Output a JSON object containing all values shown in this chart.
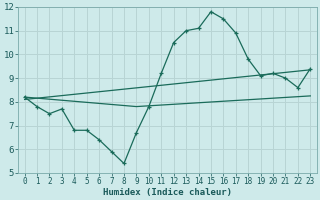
{
  "xlabel": "Humidex (Indice chaleur)",
  "bg_color": "#ceeaea",
  "grid_color": "#b8d4d4",
  "line_color": "#1a6b5a",
  "xlim": [
    -0.5,
    23.5
  ],
  "ylim": [
    5,
    12
  ],
  "yticks": [
    5,
    6,
    7,
    8,
    9,
    10,
    11,
    12
  ],
  "xticks": [
    0,
    1,
    2,
    3,
    4,
    5,
    6,
    7,
    8,
    9,
    10,
    11,
    12,
    13,
    14,
    15,
    16,
    17,
    18,
    19,
    20,
    21,
    22,
    23
  ],
  "series1_x": [
    0,
    1,
    2,
    3,
    4,
    5,
    6,
    7,
    8,
    9,
    10,
    11,
    12,
    13,
    14,
    15,
    16,
    17,
    18,
    19,
    20,
    21,
    22,
    23
  ],
  "series1_y": [
    8.2,
    7.8,
    7.5,
    7.7,
    6.8,
    6.8,
    6.4,
    5.9,
    5.4,
    6.7,
    7.8,
    9.2,
    10.5,
    11.0,
    11.1,
    11.8,
    11.5,
    10.9,
    9.8,
    9.1,
    9.2,
    9.0,
    8.6,
    9.4
  ],
  "series2_x": [
    0,
    23
  ],
  "series2_y": [
    8.1,
    9.35
  ],
  "series3_x": [
    0,
    9,
    23
  ],
  "series3_y": [
    8.2,
    7.8,
    8.25
  ]
}
